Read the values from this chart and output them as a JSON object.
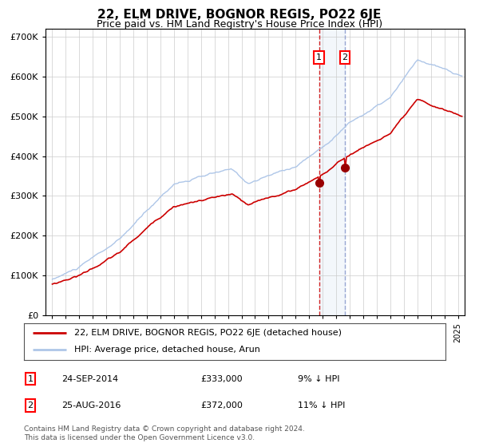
{
  "title": "22, ELM DRIVE, BOGNOR REGIS, PO22 6JE",
  "subtitle": "Price paid vs. HM Land Registry's House Price Index (HPI)",
  "hpi_color": "#aec6e8",
  "price_color": "#cc0000",
  "bg_color": "#ffffff",
  "grid_color": "#cccccc",
  "ylim": [
    0,
    720000
  ],
  "yticks": [
    0,
    100000,
    200000,
    300000,
    400000,
    500000,
    600000,
    700000
  ],
  "ytick_labels": [
    "£0",
    "£100K",
    "£200K",
    "£300K",
    "£400K",
    "£500K",
    "£600K",
    "£700K"
  ],
  "sale1_date": "24-SEP-2014",
  "sale1_price": 333000,
  "sale1_x": 2014.73,
  "sale2_date": "25-AUG-2016",
  "sale2_price": 372000,
  "sale2_x": 2016.65,
  "sale1_label": "9% ↓ HPI",
  "sale2_label": "11% ↓ HPI",
  "legend_line1": "22, ELM DRIVE, BOGNOR REGIS, PO22 6JE (detached house)",
  "legend_line2": "HPI: Average price, detached house, Arun",
  "footnote": "Contains HM Land Registry data © Crown copyright and database right 2024.\nThis data is licensed under the Open Government Licence v3.0.",
  "xlim_start": 1994.5,
  "xlim_end": 2025.5
}
